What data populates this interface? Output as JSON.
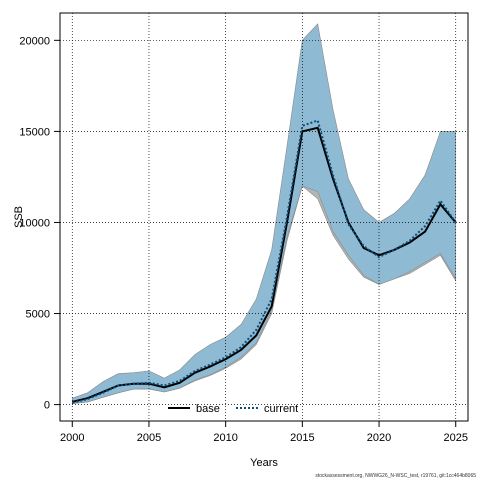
{
  "chart_data": {
    "type": "line",
    "title": "",
    "xlabel": "Years",
    "ylabel": "SSB",
    "xlim": [
      1999.2,
      2025.8
    ],
    "ylim": [
      -900,
      21500
    ],
    "xticks": [
      2000,
      2005,
      2010,
      2015,
      2020,
      2025
    ],
    "yticks": [
      0,
      5000,
      10000,
      15000,
      20000
    ],
    "grid": true,
    "legend_position": "bottom-center",
    "x": [
      2000,
      2001,
      2002,
      2003,
      2004,
      2005,
      2006,
      2007,
      2008,
      2009,
      2010,
      2011,
      2012,
      2013,
      2014,
      2015,
      2016,
      2017,
      2018,
      2019,
      2020,
      2021,
      2022,
      2023,
      2024,
      2025
    ],
    "series": [
      {
        "name": "base",
        "color": "#000000",
        "style": "solid",
        "values": [
          150,
          350,
          700,
          1050,
          1150,
          1150,
          950,
          1200,
          1750,
          2100,
          2500,
          3000,
          3800,
          5400,
          10000,
          15000,
          15200,
          12400,
          10000,
          8600,
          8200,
          8500,
          8900,
          9500,
          11000,
          10000
        ],
        "band_color": "#b5b5b5",
        "band_lower": [
          50,
          150,
          400,
          650,
          850,
          850,
          700,
          900,
          1300,
          1600,
          2000,
          2500,
          3300,
          5000,
          9000,
          12000,
          11300,
          9300,
          8000,
          7000,
          6600,
          6900,
          7200,
          7700,
          8200,
          6800
        ],
        "band_upper": [
          300,
          600,
          1150,
          1550,
          1650,
          1800,
          1400,
          1800,
          2600,
          3100,
          3500,
          4100,
          5500,
          8200,
          14000,
          19700,
          20500,
          16000,
          12300,
          10700,
          10000,
          10500,
          11200,
          12600,
          14800,
          14800
        ]
      },
      {
        "name": "current",
        "color": "#0a4d7a",
        "style": "dotted",
        "values": [
          100,
          300,
          650,
          1050,
          1150,
          1200,
          1050,
          1300,
          1850,
          2200,
          2600,
          3150,
          4100,
          5800,
          10300,
          15300,
          15600,
          12600,
          9900,
          8700,
          8100,
          8500,
          9000,
          9800,
          11200,
          10000
        ],
        "band_color": "#8fbad3",
        "band_lower": [
          50,
          150,
          400,
          650,
          850,
          850,
          700,
          900,
          1350,
          1650,
          2050,
          2600,
          3400,
          5200,
          9200,
          12000,
          11700,
          9500,
          8200,
          7100,
          6600,
          6900,
          7300,
          7800,
          8300,
          6900
        ],
        "band_upper": [
          350,
          650,
          1250,
          1700,
          1750,
          1850,
          1450,
          1900,
          2750,
          3300,
          3700,
          4400,
          5800,
          8500,
          14200,
          20000,
          20900,
          16200,
          12400,
          10700,
          10000,
          10500,
          11300,
          12600,
          15000,
          15000
        ]
      }
    ]
  },
  "caption": "stockassessment.org, NWWG26_N-WSC_test, r19761, git:1cc464b8065"
}
